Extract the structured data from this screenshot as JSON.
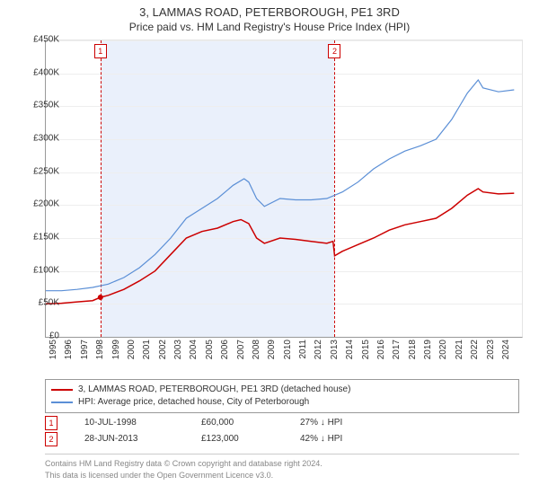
{
  "title": "3, LAMMAS ROAD, PETERBOROUGH, PE1 3RD",
  "subtitle": "Price paid vs. HM Land Registry's House Price Index (HPI)",
  "chart": {
    "type": "line",
    "background_color": "#ffffff",
    "grid_color": "#eeeeee",
    "axis_color": "#999999",
    "shade_color": "#eaf0fb",
    "shade_range": [
      1998.5,
      2013.5
    ],
    "xlim": [
      1995,
      2025.5
    ],
    "ylim": [
      0,
      450000
    ],
    "ytick_step": 50000,
    "ytick_labels": [
      "£0",
      "£50K",
      "£100K",
      "£150K",
      "£200K",
      "£250K",
      "£300K",
      "£350K",
      "£400K",
      "£450K"
    ],
    "xtick_step": 1,
    "xticks": [
      1995,
      1996,
      1997,
      1998,
      1999,
      2000,
      2001,
      2002,
      2003,
      2004,
      2005,
      2006,
      2007,
      2008,
      2009,
      2010,
      2011,
      2012,
      2013,
      2014,
      2015,
      2016,
      2017,
      2018,
      2019,
      2020,
      2021,
      2022,
      2023,
      2024
    ],
    "axis_fontsize": 10,
    "series": [
      {
        "name": "price_paid",
        "label": "3, LAMMAS ROAD, PETERBOROUGH, PE1 3RD (detached house)",
        "color": "#cc0000",
        "line_width": 1.5,
        "data": [
          [
            1995,
            50000
          ],
          [
            1996,
            51000
          ],
          [
            1997,
            53000
          ],
          [
            1998,
            55000
          ],
          [
            1998.5,
            60000
          ],
          [
            1999,
            63000
          ],
          [
            2000,
            72000
          ],
          [
            2001,
            85000
          ],
          [
            2002,
            100000
          ],
          [
            2003,
            125000
          ],
          [
            2004,
            150000
          ],
          [
            2005,
            160000
          ],
          [
            2006,
            165000
          ],
          [
            2007,
            175000
          ],
          [
            2007.5,
            178000
          ],
          [
            2008,
            172000
          ],
          [
            2008.5,
            150000
          ],
          [
            2009,
            142000
          ],
          [
            2010,
            150000
          ],
          [
            2011,
            148000
          ],
          [
            2012,
            145000
          ],
          [
            2013,
            142000
          ],
          [
            2013.4,
            145000
          ],
          [
            2013.5,
            123000
          ],
          [
            2014,
            130000
          ],
          [
            2015,
            140000
          ],
          [
            2016,
            150000
          ],
          [
            2017,
            162000
          ],
          [
            2018,
            170000
          ],
          [
            2019,
            175000
          ],
          [
            2020,
            180000
          ],
          [
            2021,
            195000
          ],
          [
            2022,
            215000
          ],
          [
            2022.7,
            225000
          ],
          [
            2023,
            220000
          ],
          [
            2024,
            217000
          ],
          [
            2025,
            218000
          ]
        ]
      },
      {
        "name": "hpi",
        "label": "HPI: Average price, detached house, City of Peterborough",
        "color": "#5b8fd6",
        "line_width": 1.2,
        "data": [
          [
            1995,
            70000
          ],
          [
            1996,
            70000
          ],
          [
            1997,
            72000
          ],
          [
            1998,
            75000
          ],
          [
            1999,
            80000
          ],
          [
            2000,
            90000
          ],
          [
            2001,
            105000
          ],
          [
            2002,
            125000
          ],
          [
            2003,
            150000
          ],
          [
            2004,
            180000
          ],
          [
            2005,
            195000
          ],
          [
            2006,
            210000
          ],
          [
            2007,
            230000
          ],
          [
            2007.7,
            240000
          ],
          [
            2008,
            235000
          ],
          [
            2008.5,
            210000
          ],
          [
            2009,
            198000
          ],
          [
            2010,
            210000
          ],
          [
            2011,
            208000
          ],
          [
            2012,
            208000
          ],
          [
            2013,
            210000
          ],
          [
            2014,
            220000
          ],
          [
            2015,
            235000
          ],
          [
            2016,
            255000
          ],
          [
            2017,
            270000
          ],
          [
            2018,
            282000
          ],
          [
            2019,
            290000
          ],
          [
            2020,
            300000
          ],
          [
            2021,
            330000
          ],
          [
            2022,
            370000
          ],
          [
            2022.7,
            390000
          ],
          [
            2023,
            378000
          ],
          [
            2024,
            372000
          ],
          [
            2025,
            375000
          ]
        ]
      }
    ],
    "event_markers": [
      {
        "id": "1",
        "x": 1998.5,
        "top_offset": -12
      },
      {
        "id": "2",
        "x": 2013.5,
        "top_offset": -12
      }
    ]
  },
  "legend": {
    "border_color": "#999999"
  },
  "events": [
    {
      "id": "1",
      "date": "10-JUL-1998",
      "price": "£60,000",
      "delta": "27% ↓ HPI"
    },
    {
      "id": "2",
      "date": "28-JUN-2013",
      "price": "£123,000",
      "delta": "42% ↓ HPI"
    }
  ],
  "footer": {
    "line1": "Contains HM Land Registry data © Crown copyright and database right 2024.",
    "line2": "This data is licensed under the Open Government Licence v3.0."
  }
}
